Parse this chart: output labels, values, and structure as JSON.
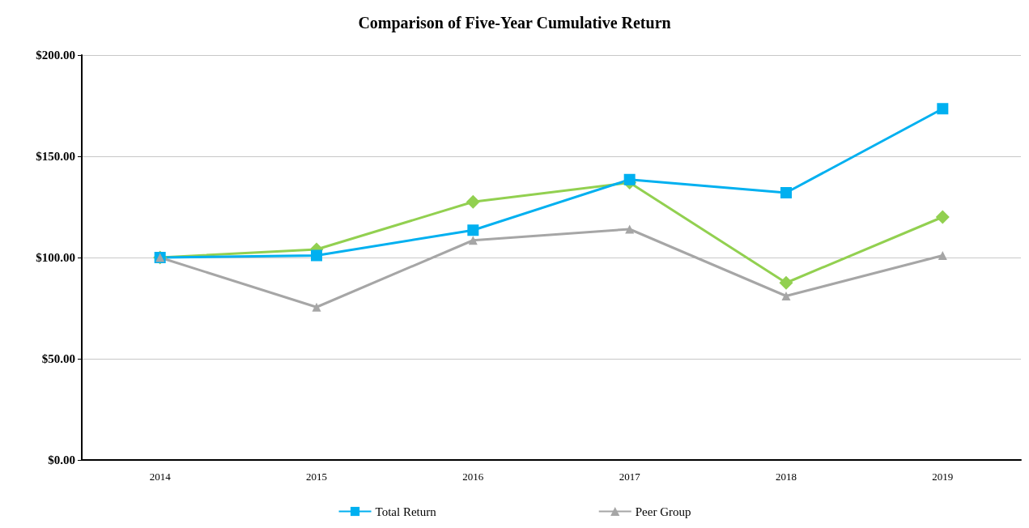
{
  "chart_data": {
    "type": "line",
    "title": "Comparison of Five-Year Cumulative Return",
    "categories": [
      "2014",
      "2015",
      "2016",
      "2017",
      "2018",
      "2019"
    ],
    "series": [
      {
        "color": "#92d050",
        "marker": "diamond",
        "values": [
          100,
          104,
          127.5,
          137,
          87.5,
          120
        ]
      },
      {
        "name": "Total Return",
        "color": "#00b0f0",
        "marker": "square",
        "values": [
          100,
          101,
          113.5,
          138.5,
          132,
          173.5
        ]
      },
      {
        "name": "Peer Group",
        "color": "#a6a6a6",
        "marker": "triangle",
        "values": [
          100,
          75.5,
          108.5,
          114,
          81,
          101
        ]
      }
    ],
    "ylim": [
      0,
      200
    ],
    "yticks": [
      {
        "value": 0,
        "label": "$0.00"
      },
      {
        "value": 50,
        "label": "$50.00"
      },
      {
        "value": 100,
        "label": "$100.00"
      },
      {
        "value": 150,
        "label": "$150.00"
      },
      {
        "value": 200,
        "label": "$200.00"
      }
    ],
    "grid": "y",
    "legend": "bottom"
  }
}
